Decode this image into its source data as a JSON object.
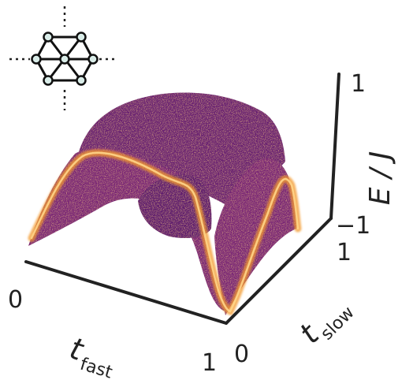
{
  "chart_data": {
    "type": "surface-density",
    "axes": {
      "x": {
        "label_main": "t",
        "label_sub": "fast",
        "range": [
          0,
          1
        ],
        "ticks": [
          "0",
          "1"
        ]
      },
      "y": {
        "label_main": "t",
        "label_sub": "slow",
        "range": [
          0,
          1
        ],
        "ticks": [
          "0",
          "1"
        ]
      },
      "z": {
        "label": "E / J",
        "range": [
          -1,
          1
        ],
        "ticks": [
          "−1",
          "1"
        ]
      }
    },
    "colors": {
      "body_dark": "#5e1b6e",
      "body_mid": "#8a2a78",
      "ridge": "#f39a2e",
      "ridge_light": "#ffd58a",
      "axis": "#222222"
    },
    "inset": {
      "icon": "kagome-lattice-icon"
    }
  }
}
